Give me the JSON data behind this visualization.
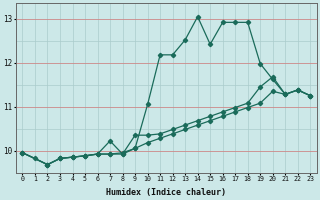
{
  "xlabel": "Humidex (Indice chaleur)",
  "bg_color": "#cce8e8",
  "grid_color_v": "#aacccc",
  "grid_color_h_red": "#cc8888",
  "grid_color_h_teal": "#aacccc",
  "line_color": "#1a6b5a",
  "xmin": -0.5,
  "xmax": 23.5,
  "ymin": 9.5,
  "ymax": 13.35,
  "yticks": [
    10,
    11,
    12,
    13
  ],
  "xticks": [
    0,
    1,
    2,
    3,
    4,
    5,
    6,
    7,
    8,
    9,
    10,
    11,
    12,
    13,
    14,
    15,
    16,
    17,
    18,
    19,
    20,
    21,
    22,
    23
  ],
  "series1_x": [
    0,
    1,
    2,
    3,
    4,
    5,
    6,
    7,
    8,
    9,
    10,
    11,
    12,
    13,
    14,
    15,
    16,
    17,
    18,
    19,
    20,
    21,
    22,
    23
  ],
  "series1_y": [
    9.95,
    9.82,
    9.68,
    9.82,
    9.85,
    9.88,
    9.92,
    9.92,
    9.95,
    10.05,
    11.05,
    12.18,
    12.18,
    12.52,
    13.05,
    12.42,
    12.92,
    12.92,
    12.92,
    11.98,
    11.62,
    11.28,
    11.38,
    11.25
  ],
  "series2_x": [
    0,
    2,
    3,
    4,
    5,
    6,
    7,
    8,
    9,
    10,
    11,
    12,
    13,
    14,
    15,
    16,
    17,
    18,
    19,
    20,
    21,
    22,
    23
  ],
  "series2_y": [
    9.95,
    9.68,
    9.82,
    9.85,
    9.88,
    9.92,
    10.22,
    9.92,
    10.35,
    10.35,
    10.38,
    10.48,
    10.58,
    10.68,
    10.78,
    10.88,
    10.98,
    11.08,
    11.45,
    11.68,
    11.28,
    11.38,
    11.25
  ],
  "series3_x": [
    0,
    2,
    3,
    4,
    5,
    6,
    7,
    8,
    9,
    10,
    11,
    12,
    13,
    14,
    15,
    16,
    17,
    18,
    19,
    20,
    21,
    22,
    23
  ],
  "series3_y": [
    9.95,
    9.68,
    9.82,
    9.85,
    9.88,
    9.92,
    9.92,
    9.92,
    10.05,
    10.18,
    10.28,
    10.38,
    10.48,
    10.58,
    10.68,
    10.78,
    10.88,
    10.98,
    11.08,
    11.35,
    11.28,
    11.38,
    11.25
  ]
}
